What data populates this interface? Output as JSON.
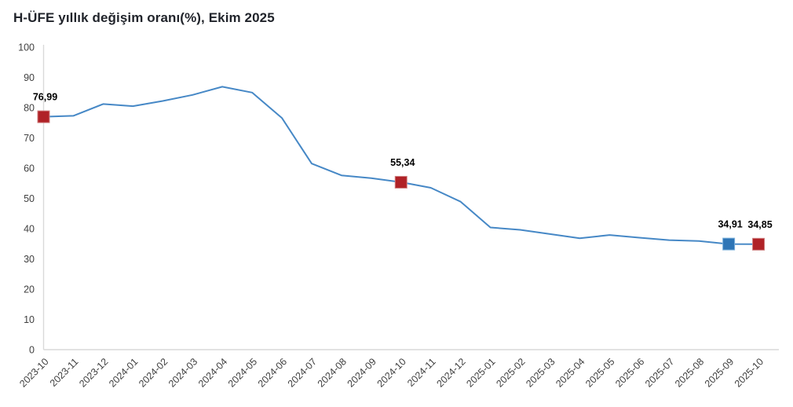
{
  "title": "H-ÜFE yıllık değişim oranı(%), Ekim 2025",
  "colors": {
    "line": "#4688c6",
    "marker_red": "#b02227",
    "marker_red_edge": "#cf7f7f",
    "marker_blue": "#2e75b6",
    "marker_blue_edge": "#7bb0dc",
    "axis": "#d9d9d9",
    "tick_text": "#404040",
    "data_label_text": "#000000",
    "title_text": "#21242b",
    "background": "#ffffff"
  },
  "chart_data": {
    "type": "line",
    "title": "H-ÜFE yıllık değişim oranı(%), Ekim 2025",
    "x": [
      "2023-10",
      "2023-11",
      "2023-12",
      "2024-01",
      "2024-02",
      "2024-03",
      "2024-04",
      "2024-05",
      "2024-06",
      "2024-07",
      "2024-08",
      "2024-09",
      "2024-10",
      "2024-11",
      "2024-12",
      "2025-01",
      "2025-02",
      "2025-03",
      "2025-04",
      "2025-05",
      "2025-06",
      "2025-07",
      "2025-08",
      "2025-09",
      "2025-10"
    ],
    "values": [
      76.99,
      77.3,
      81.2,
      80.5,
      82.2,
      84.2,
      86.9,
      85.0,
      76.6,
      61.5,
      57.6,
      56.7,
      55.34,
      53.5,
      48.9,
      40.4,
      39.6,
      38.2,
      36.8,
      37.9,
      37.0,
      36.2,
      35.9,
      34.91,
      34.85
    ],
    "ylim": [
      0,
      100
    ],
    "yticks": [
      "0",
      "10",
      "20",
      "30",
      "40",
      "50",
      "60",
      "70",
      "80",
      "90",
      "100"
    ],
    "grid": false,
    "legend": "none",
    "annotations": [
      {
        "x": "2023-10",
        "value": 76.99,
        "label": "76,99",
        "marker": "red"
      },
      {
        "x": "2024-10",
        "value": 55.34,
        "label": "55,34",
        "marker": "red"
      },
      {
        "x": "2025-09",
        "value": 34.91,
        "label": "34,91",
        "marker": "blue"
      },
      {
        "x": "2025-10",
        "value": 34.85,
        "label": "34,85",
        "marker": "red"
      }
    ]
  }
}
